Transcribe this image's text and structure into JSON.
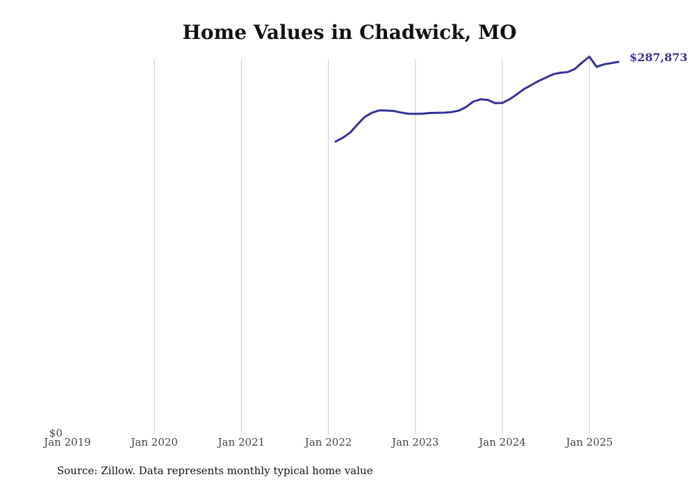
{
  "colors": {
    "series": "#353299",
    "grid": "#c8c8c8",
    "text": "#111111",
    "tick_text": "#444444"
  },
  "source_note": "Source: Zillow. Data represents monthly typical home value",
  "chart_data": {
    "type": "line",
    "title": "Home Values in Chadwick, MO",
    "xlabel": "",
    "ylabel": "",
    "x_ticks": [
      "Jan 2019",
      "Jan 2020",
      "Jan 2021",
      "Jan 2022",
      "Jan 2023",
      "Jan 2024",
      "Jan 2025"
    ],
    "xlim": [
      "2019-01",
      "2025-05"
    ],
    "y_ticks": [
      {
        "value": 0,
        "label": "$0"
      }
    ],
    "ylim": [
      0,
      287873
    ],
    "grid": "vertical",
    "end_label": "$287,873",
    "x": [
      "2022-02",
      "2022-03",
      "2022-04",
      "2022-05",
      "2022-06",
      "2022-07",
      "2022-08",
      "2022-09",
      "2022-10",
      "2022-11",
      "2022-12",
      "2023-01",
      "2023-02",
      "2023-03",
      "2023-04",
      "2023-05",
      "2023-06",
      "2023-07",
      "2023-08",
      "2023-09",
      "2023-10",
      "2023-11",
      "2023-12",
      "2024-01",
      "2024-02",
      "2024-03",
      "2024-04",
      "2024-05",
      "2024-06",
      "2024-07",
      "2024-08",
      "2024-09",
      "2024-10",
      "2024-11",
      "2024-12",
      "2025-01",
      "2025-02",
      "2025-03",
      "2025-04",
      "2025-05"
    ],
    "series": [
      {
        "values": [
          226200,
          229200,
          233100,
          239400,
          245200,
          248500,
          250300,
          250200,
          249900,
          248700,
          247800,
          247600,
          247800,
          248300,
          248500,
          248600,
          249000,
          250200,
          253000,
          257200,
          258900,
          258400,
          255900,
          256100,
          259000,
          262800,
          266900,
          270000,
          273100,
          275700,
          278300,
          279500,
          280000,
          282400,
          287400,
          291900,
          284000,
          286000,
          286900,
          287873
        ]
      }
    ]
  }
}
